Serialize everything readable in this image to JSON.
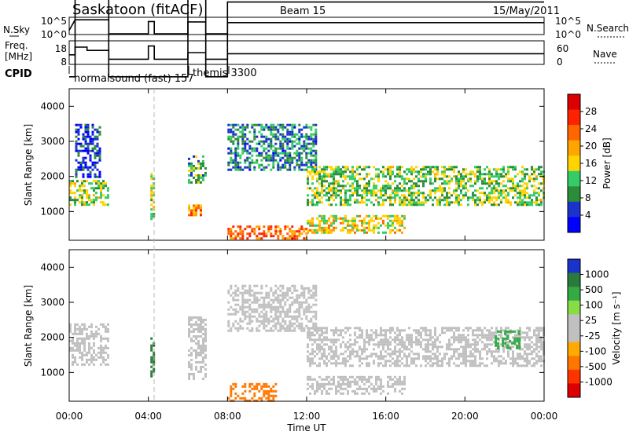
{
  "header": {
    "title": "Saskatoon (fitACF)",
    "beam": "Beam 15",
    "date": "15/May/2011"
  },
  "status_panels": {
    "nsky_label": "N.Sky",
    "nsky_ticks": [
      "10^5",
      "10^0"
    ],
    "nsearch_label": "N.Search",
    "nsearch_ticks": [
      "10^5",
      "10^0"
    ],
    "freq_label_1": "Freq.",
    "freq_label_2": "[MHz]",
    "freq_ticks": [
      "18",
      "8"
    ],
    "nave_label": "Nave",
    "nave_ticks": [
      "60",
      "0"
    ],
    "cpid_label": "CPID",
    "cpid_names": [
      "normalsound (fast) 157",
      "themis 3300"
    ]
  },
  "colors": {
    "power_scale": [
      "#0000ff",
      "#1a33cc",
      "#2b8c3a",
      "#33cc66",
      "#ffd400",
      "#ffa500",
      "#ff6600",
      "#ff2200",
      "#dd0000"
    ],
    "velocity_scale": [
      "#1a33cc",
      "#2b7a3a",
      "#33aa44",
      "#88dd44",
      "#c0c0c0",
      "#c0c0c0",
      "#ffaa00",
      "#ff7700",
      "#ff3300",
      "#dd0000"
    ]
  },
  "chart_data": [
    {
      "type": "line",
      "panel": "noise",
      "x_unit": "hours UT",
      "xlim": [
        0,
        24
      ],
      "series": [
        {
          "name": "N.Sky",
          "x": [
            0,
            0.2,
            0.3,
            0.5,
            2.0,
            2.0,
            4.0,
            4.0,
            4.3,
            4.3,
            6.0,
            6.0,
            6.9,
            6.9,
            8.0,
            8.0,
            24
          ],
          "values": [
            1,
            3,
            4,
            4,
            4,
            0,
            0,
            3.5,
            3.5,
            0,
            0,
            3.4,
            3.4,
            0,
            0,
            3.2,
            3.2
          ]
        }
      ]
    },
    {
      "type": "line",
      "panel": "frequency",
      "x_unit": "hours UT",
      "xlim": [
        0,
        24
      ],
      "series": [
        {
          "name": "Freq.",
          "x": [
            0,
            0.3,
            0.3,
            0.9,
            0.9,
            2.0,
            2.0,
            4.0,
            4.0,
            4.3,
            4.3,
            6.0,
            6.0,
            6.9,
            6.9,
            8.0,
            8.0,
            24
          ],
          "values": [
            10,
            10,
            13.5,
            13.5,
            12,
            12,
            8,
            8,
            14,
            14,
            8,
            8,
            11,
            11,
            8,
            8,
            10.5,
            10.5
          ]
        },
        {
          "name": "Nave",
          "x": [
            0,
            0.3,
            0.3,
            2.0,
            2.0,
            6.0,
            6.0,
            6.9,
            6.9,
            8.0,
            8.0,
            24
          ],
          "values": [
            0,
            0,
            38,
            38,
            0,
            0,
            38,
            38,
            0,
            0,
            34,
            34
          ]
        }
      ]
    },
    {
      "type": "heatmap",
      "panel": "power",
      "xlabel": "Time UT",
      "ylabel": "Slant Range [km]",
      "xlim": [
        0,
        24
      ],
      "ylim": [
        180,
        4500
      ],
      "x_ticks": [
        "00:00",
        "04:00",
        "08:00",
        "12:00",
        "16:00",
        "20:00",
        "00:00"
      ],
      "y_ticks": [
        1000,
        2000,
        3000,
        4000
      ],
      "colorbar_label": "Power [dB]",
      "colorbar_ticks": [
        4,
        8,
        12,
        16,
        20,
        24,
        28
      ],
      "colorbar_range": [
        0,
        30
      ],
      "regions": [
        {
          "x": [
            0,
            2
          ],
          "y": [
            1200,
            1900
          ],
          "value": 12
        },
        {
          "x": [
            0.3,
            1.6
          ],
          "y": [
            2000,
            3500
          ],
          "value": 4
        },
        {
          "x": [
            4.1,
            4.3
          ],
          "y": [
            800,
            2100
          ],
          "value": 14
        },
        {
          "x": [
            6.0,
            6.9
          ],
          "y": [
            1800,
            2600
          ],
          "value": 10
        },
        {
          "x": [
            6.0,
            6.6
          ],
          "y": [
            900,
            1200
          ],
          "value": 20
        },
        {
          "x": [
            8.0,
            12.0
          ],
          "y": [
            200,
            600
          ],
          "value": 22
        },
        {
          "x": [
            8.0,
            12.5
          ],
          "y": [
            2200,
            3500
          ],
          "value": 8
        },
        {
          "x": [
            12.0,
            24.0
          ],
          "y": [
            1200,
            2300
          ],
          "value": 12
        },
        {
          "x": [
            12.0,
            17.0
          ],
          "y": [
            400,
            900
          ],
          "value": 16
        }
      ]
    },
    {
      "type": "heatmap",
      "panel": "velocity",
      "xlabel": "Time UT",
      "ylabel": "Slant Range [km]",
      "xlim": [
        0,
        24
      ],
      "ylim": [
        180,
        4500
      ],
      "x_ticks": [
        "00:00",
        "04:00",
        "08:00",
        "12:00",
        "16:00",
        "20:00",
        "00:00"
      ],
      "y_ticks": [
        1000,
        2000,
        3000,
        4000
      ],
      "colorbar_label": "Velocity [m s⁻¹]",
      "colorbar_ticks": [
        1000,
        500,
        100,
        25,
        -25,
        -100,
        -500,
        -1000
      ],
      "regions": [
        {
          "x": [
            0,
            2
          ],
          "y": [
            1200,
            2400
          ],
          "value": 0
        },
        {
          "x": [
            4.1,
            4.3
          ],
          "y": [
            900,
            2000
          ],
          "value": 600
        },
        {
          "x": [
            6.0,
            6.9
          ],
          "y": [
            800,
            2600
          ],
          "value": 0
        },
        {
          "x": [
            8.0,
            10.5
          ],
          "y": [
            200,
            700
          ],
          "value": -150
        },
        {
          "x": [
            8.0,
            12.5
          ],
          "y": [
            2200,
            3500
          ],
          "value": 0
        },
        {
          "x": [
            12.0,
            24.0
          ],
          "y": [
            1200,
            2300
          ],
          "value": 0
        },
        {
          "x": [
            21.5,
            22.8
          ],
          "y": [
            1700,
            2200
          ],
          "value": 200
        },
        {
          "x": [
            12.0,
            17.0
          ],
          "y": [
            400,
            900
          ],
          "value": 0
        }
      ]
    }
  ],
  "axes": {
    "xlabel": "Time UT",
    "ylabel": "Slant Range [km]",
    "x_ticks": [
      "00:00",
      "04:00",
      "08:00",
      "12:00",
      "16:00",
      "20:00",
      "00:00"
    ],
    "y_ticks": [
      "1000",
      "2000",
      "3000",
      "4000"
    ]
  },
  "colorbars": {
    "power_label": "Power [dB]",
    "power_ticks": [
      "28",
      "24",
      "20",
      "16",
      "12",
      "8",
      "4"
    ],
    "velocity_label": "Velocity [m s⁻¹]",
    "velocity_ticks": [
      "1000",
      "500",
      "100",
      "25",
      "-25",
      "-100",
      "-500",
      "-1000"
    ]
  }
}
